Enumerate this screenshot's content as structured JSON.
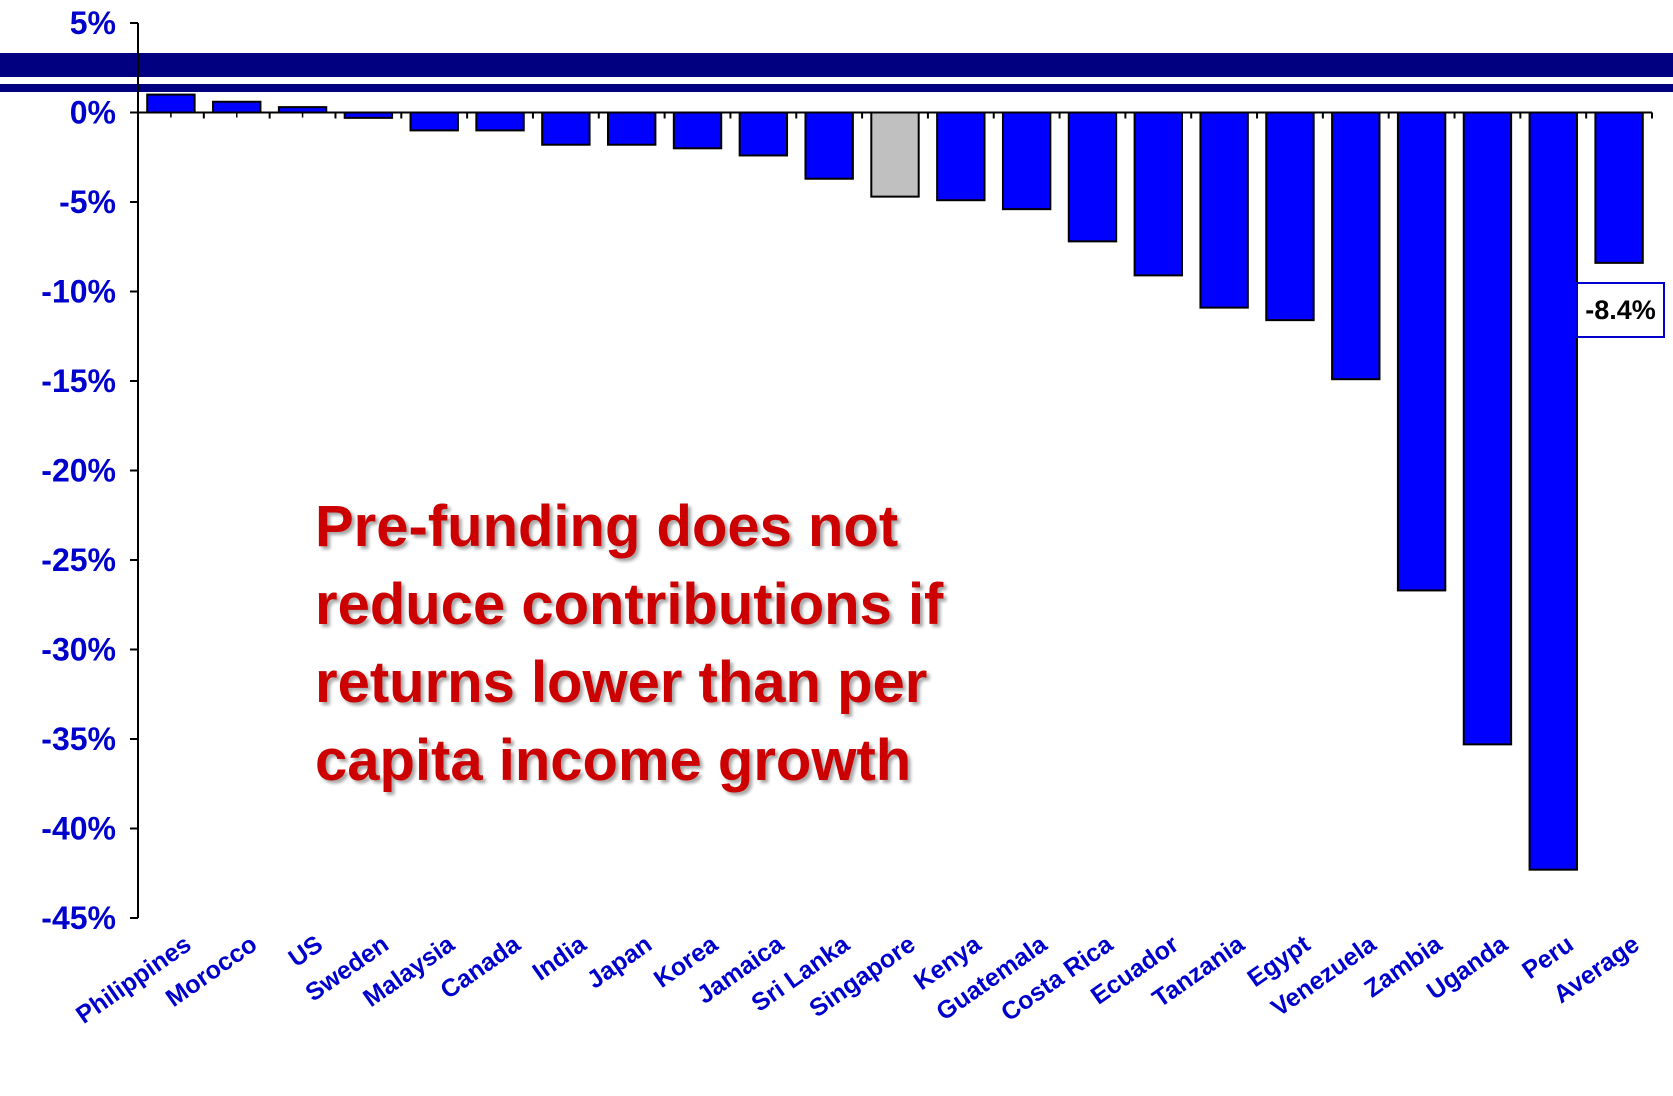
{
  "title_fragment": "",
  "callout_lines": [
    "Pre-funding does not",
    "reduce contributions if",
    "returns lower than per",
    "capita income growth"
  ],
  "average_label": "-8.4%",
  "colors": {
    "bar": "#0000ff",
    "highlight_bar": "#c0c0c0",
    "axis_text": "#0000cc",
    "band": "#000080",
    "callout": "#cc0000"
  },
  "chart_data": {
    "type": "bar",
    "categories": [
      "Philippines",
      "Morocco",
      "US",
      "Sweden",
      "Malaysia",
      "Canada",
      "India",
      "Japan",
      "Korea",
      "Jamaica",
      "Sri Lanka",
      "Singapore",
      "Kenya",
      "Guatemala",
      "Costa Rica",
      "Ecuador",
      "Tanzania",
      "Egypt",
      "Venezuela",
      "Zambia",
      "Uganda",
      "Peru",
      "Average"
    ],
    "values": [
      1.0,
      0.6,
      0.3,
      -0.3,
      -1.0,
      -1.0,
      -1.8,
      -1.8,
      -2.0,
      -2.4,
      -3.7,
      -4.7,
      -4.9,
      -5.4,
      -7.2,
      -9.1,
      -10.9,
      -11.6,
      -14.9,
      -26.7,
      -35.3,
      -42.3,
      -8.4
    ],
    "highlight": [
      "Singapore"
    ],
    "yticks": [
      5,
      0,
      -5,
      -10,
      -15,
      -20,
      -25,
      -30,
      -35,
      -40,
      -45
    ],
    "ytick_format": "percent",
    "ylim": [
      -45,
      5
    ],
    "annotation": {
      "category": "Average",
      "text": "-8.4%"
    }
  }
}
